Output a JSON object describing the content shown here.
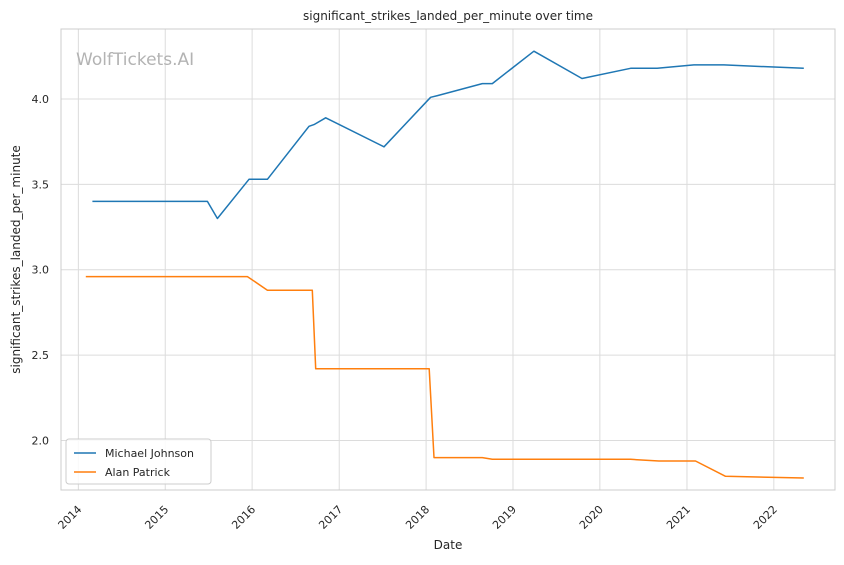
{
  "chart_data": {
    "type": "line",
    "title": "significant_strikes_landed_per_minute over time",
    "xlabel": "Date",
    "ylabel": "significant_strikes_landed_per_minute",
    "watermark": "WolfTickets.AI",
    "xlim": [
      "2013-10-20",
      "2022-09-15"
    ],
    "ylim": [
      1.71,
      4.41
    ],
    "x_ticks": [
      "2014",
      "2015",
      "2016",
      "2017",
      "2018",
      "2019",
      "2020",
      "2021",
      "2022"
    ],
    "y_ticks": [
      "2.0",
      "2.5",
      "3.0",
      "3.5",
      "4.0"
    ],
    "grid": true,
    "legend_position": "lower-left",
    "series": [
      {
        "name": "Michael Johnson",
        "color": "#1f77b4",
        "points": [
          [
            "2014-03-01",
            3.4
          ],
          [
            "2015-06-27",
            3.4
          ],
          [
            "2015-08-08",
            3.3
          ],
          [
            "2015-12-19",
            3.53
          ],
          [
            "2016-03-05",
            3.53
          ],
          [
            "2016-08-27",
            3.84
          ],
          [
            "2016-09-17",
            3.85
          ],
          [
            "2016-11-05",
            3.89
          ],
          [
            "2017-07-08",
            3.72
          ],
          [
            "2018-01-20",
            4.01
          ],
          [
            "2018-02-18",
            4.02
          ],
          [
            "2018-08-25",
            4.09
          ],
          [
            "2018-10-06",
            4.09
          ],
          [
            "2019-03-30",
            4.28
          ],
          [
            "2019-10-18",
            4.12
          ],
          [
            "2020-05-09",
            4.18
          ],
          [
            "2020-08-29",
            4.18
          ],
          [
            "2021-01-30",
            4.2
          ],
          [
            "2021-06-05",
            4.2
          ],
          [
            "2022-05-07",
            4.18
          ]
        ]
      },
      {
        "name": "Alan Patrick",
        "color": "#ff7f0e",
        "points": [
          [
            "2014-02-01",
            2.96
          ],
          [
            "2015-12-12",
            2.96
          ],
          [
            "2016-03-05",
            2.88
          ],
          [
            "2016-09-10",
            2.88
          ],
          [
            "2016-09-24",
            2.42
          ],
          [
            "2018-01-14",
            2.42
          ],
          [
            "2018-02-03",
            1.9
          ],
          [
            "2018-08-25",
            1.9
          ],
          [
            "2018-10-06",
            1.89
          ],
          [
            "2020-05-09",
            1.89
          ],
          [
            "2020-09-05",
            1.88
          ],
          [
            "2021-02-06",
            1.88
          ],
          [
            "2021-06-12",
            1.79
          ],
          [
            "2022-05-07",
            1.78
          ]
        ]
      }
    ]
  }
}
